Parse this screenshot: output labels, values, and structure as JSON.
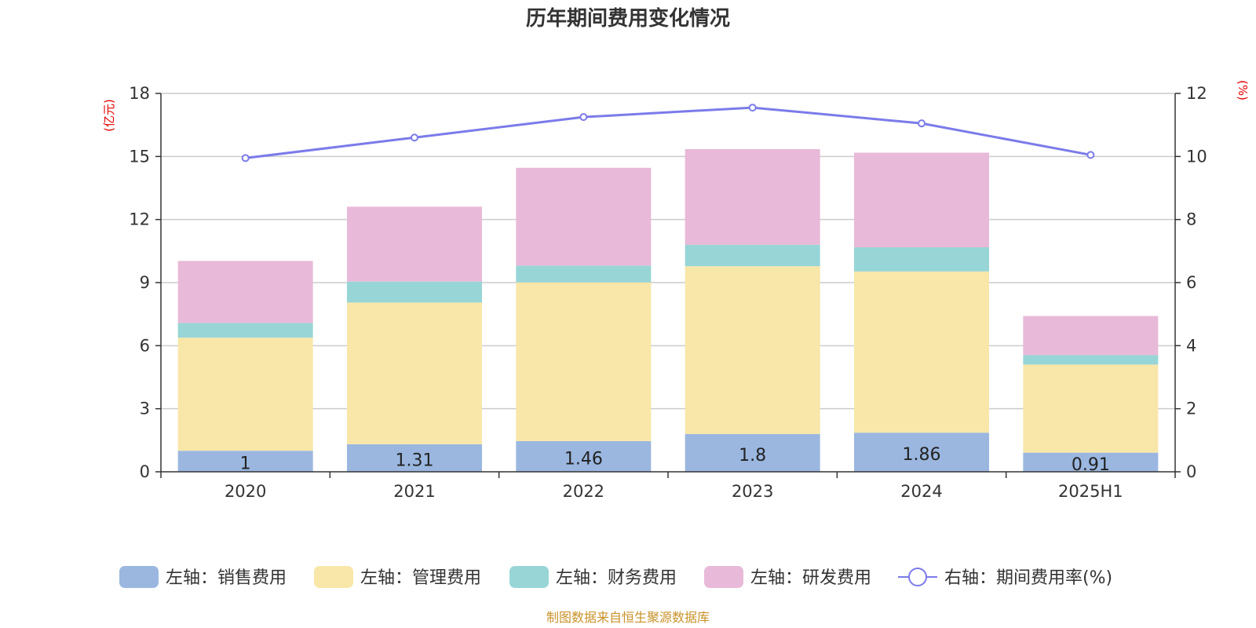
{
  "chart_data": {
    "type": "bar",
    "stacked": true,
    "title": "历年期间费用变化情况",
    "left_axis_unit": "(亿元)",
    "right_axis_unit": "(%)",
    "categories": [
      "2020",
      "2021",
      "2022",
      "2023",
      "2024",
      "2025H1"
    ],
    "ylim_left": [
      0,
      18
    ],
    "yticks_left": [
      0,
      3,
      6,
      9,
      12,
      15,
      18
    ],
    "ylim_right": [
      0,
      12
    ],
    "yticks_right": [
      0,
      2,
      4,
      6,
      8,
      10,
      12
    ],
    "series": [
      {
        "name": "左轴：销售费用",
        "axis": "left",
        "kind": "bar",
        "color": "#9bb7e0",
        "values": [
          1,
          1.31,
          1.46,
          1.8,
          1.86,
          0.91
        ],
        "labels": [
          "1",
          "1.31",
          "1.46",
          "1.8",
          "1.86",
          "0.91"
        ]
      },
      {
        "name": "左轴：管理费用",
        "axis": "left",
        "kind": "bar",
        "color": "#f8e7a8",
        "values": [
          5.38,
          6.74,
          7.55,
          7.98,
          7.67,
          4.19
        ]
      },
      {
        "name": "左轴：财务费用",
        "axis": "left",
        "kind": "bar",
        "color": "#98d5d6",
        "values": [
          0.7,
          1.0,
          0.8,
          1.02,
          1.15,
          0.45
        ]
      },
      {
        "name": "左轴：研发费用",
        "axis": "left",
        "kind": "bar",
        "color": "#e8b9d8",
        "values": [
          2.95,
          3.56,
          4.65,
          4.55,
          4.5,
          1.86
        ]
      },
      {
        "name": "右轴：期间费用率(%)",
        "axis": "right",
        "kind": "line",
        "color": "#7b7bea",
        "values": [
          9.95,
          10.6,
          11.25,
          11.55,
          11.05,
          10.05
        ]
      }
    ],
    "grid": true,
    "legend_position": "bottom"
  },
  "source_note": "制图数据来自恒生聚源数据库"
}
